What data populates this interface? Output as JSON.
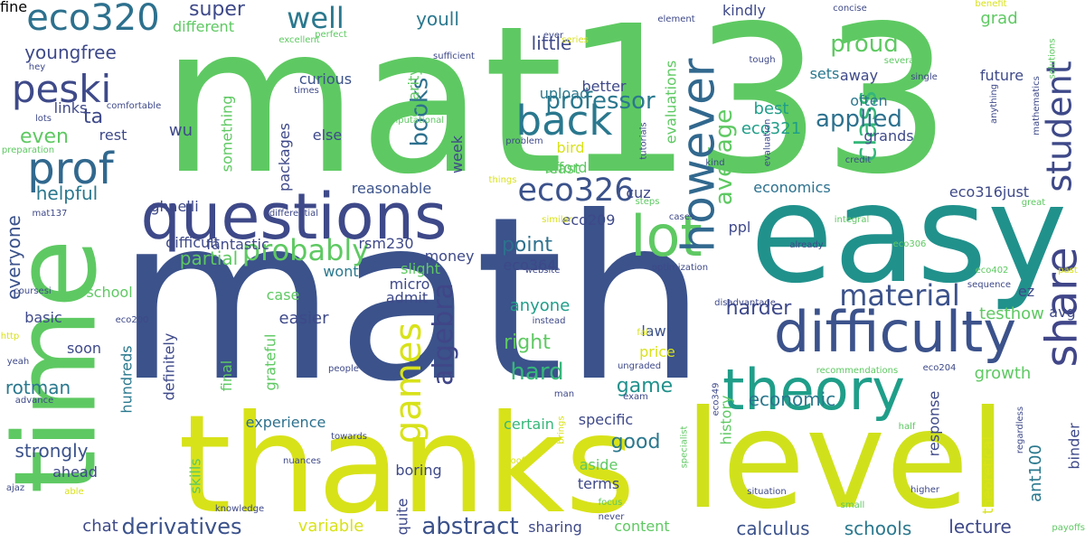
{
  "words": [
    {
      "text": "math",
      "color": "#3b528b",
      "rotate": false
    },
    {
      "text": "mat133",
      "color": "#5ec962",
      "rotate": false
    },
    {
      "text": "easy",
      "color": "#21918c",
      "rotate": false
    },
    {
      "text": "thanks",
      "color": "#d8e219",
      "rotate": false
    },
    {
      "text": "level",
      "color": "#d0e11c",
      "rotate": false
    },
    {
      "text": "time",
      "color": "#5ec962",
      "rotate": true
    },
    {
      "text": "questions",
      "color": "#3e4989",
      "rotate": false
    },
    {
      "text": "difficulty",
      "color": "#3b528b",
      "rotate": false
    },
    {
      "text": "theory",
      "color": "#1f9e89",
      "rotate": false
    },
    {
      "text": "lot",
      "color": "#5ec962",
      "rotate": false
    },
    {
      "text": "back",
      "color": "#2a788e",
      "rotate": false
    },
    {
      "text": "however",
      "color": "#31688e",
      "rotate": true
    },
    {
      "text": "share",
      "color": "#404688",
      "rotate": true
    },
    {
      "text": "prof",
      "color": "#31688e",
      "rotate": false
    },
    {
      "text": "peski",
      "color": "#3e4a89",
      "rotate": false
    },
    {
      "text": "eco320",
      "color": "#2d718e",
      "rotate": false
    },
    {
      "text": "eco326",
      "color": "#3b528b",
      "rotate": false
    },
    {
      "text": "class",
      "color": "#35b779",
      "rotate": true
    },
    {
      "text": "student",
      "color": "#3e4989",
      "rotate": true
    },
    {
      "text": "games",
      "color": "#d8e219",
      "rotate": true
    },
    {
      "text": "probably",
      "color": "#5ec962",
      "rotate": false
    },
    {
      "text": "material",
      "color": "#3b528b",
      "rotate": false
    },
    {
      "text": "well",
      "color": "#2a788e",
      "rotate": false
    },
    {
      "text": "professor",
      "color": "#2a788e",
      "rotate": false
    },
    {
      "text": "algebra",
      "color": "#404688",
      "rotate": true
    },
    {
      "text": "abstract",
      "color": "#3b528b",
      "rotate": false
    },
    {
      "text": "derivatives",
      "color": "#3b528b",
      "rotate": false
    },
    {
      "text": "books",
      "color": "#2d718e",
      "rotate": true
    },
    {
      "text": "proud",
      "color": "#5ec962",
      "rotate": false
    },
    {
      "text": "applied",
      "color": "#2d718e",
      "rotate": false
    },
    {
      "text": "average",
      "color": "#5ec962",
      "rotate": true
    },
    {
      "text": "point",
      "color": "#2d718e",
      "rotate": false
    },
    {
      "text": "right",
      "color": "#5ec962",
      "rotate": false
    },
    {
      "text": "hard",
      "color": "#35b779",
      "rotate": false
    },
    {
      "text": "super",
      "color": "#3e4989",
      "rotate": false
    },
    {
      "text": "youll",
      "color": "#2a788e",
      "rotate": false
    },
    {
      "text": "little",
      "color": "#3e4989",
      "rotate": false
    },
    {
      "text": "economic",
      "color": "#2a788e",
      "rotate": false
    },
    {
      "text": "good",
      "color": "#2a788e",
      "rotate": false
    },
    {
      "text": "rotman",
      "color": "#2a788e",
      "rotate": false
    },
    {
      "text": "strongly",
      "color": "#3b528b",
      "rotate": false
    },
    {
      "text": "everyone",
      "color": "#3b528b",
      "rotate": true
    },
    {
      "text": "youngfree",
      "color": "#3e4989",
      "rotate": false
    },
    {
      "text": "ta",
      "color": "#3e4989",
      "rotate": false
    },
    {
      "text": "even",
      "color": "#5ec962",
      "rotate": false
    },
    {
      "text": "helpful",
      "color": "#2a788e",
      "rotate": false
    },
    {
      "text": "harder",
      "color": "#3e4989",
      "rotate": false
    },
    {
      "text": "calculus",
      "color": "#3b528b",
      "rotate": false
    },
    {
      "text": "schools",
      "color": "#2a788e",
      "rotate": false
    },
    {
      "text": "lecture",
      "color": "#3e4989",
      "rotate": false
    },
    {
      "text": "chat",
      "color": "#3e4989",
      "rotate": false
    },
    {
      "text": "variable",
      "color": "#d8e219",
      "rotate": false
    },
    {
      "text": "content",
      "color": "#5ec962",
      "rotate": false
    },
    {
      "text": "certain",
      "color": "#35b779",
      "rotate": false
    },
    {
      "text": "experience",
      "color": "#2d718e",
      "rotate": false
    },
    {
      "text": "easier",
      "color": "#3e4989",
      "rotate": false
    },
    {
      "text": "partial",
      "color": "#5ec962",
      "rotate": false
    },
    {
      "text": "anyone",
      "color": "#1f9e89",
      "rotate": false
    },
    {
      "text": "game",
      "color": "#21918c",
      "rotate": false
    },
    {
      "text": "economics",
      "color": "#2d718e",
      "rotate": false
    },
    {
      "text": "history",
      "color": "#5ec962",
      "rotate": true
    },
    {
      "text": "testhow",
      "color": "#5ec962",
      "rotate": false
    },
    {
      "text": "growth",
      "color": "#5ec962",
      "rotate": false
    },
    {
      "text": "ant100",
      "color": "#2a788e",
      "rotate": true
    },
    {
      "text": "eco321",
      "color": "#1f9e89",
      "rotate": false
    },
    {
      "text": "best",
      "color": "#1f9e89",
      "rotate": false
    },
    {
      "text": "grands",
      "color": "#3e4989",
      "rotate": false
    },
    {
      "text": "grad",
      "color": "#5ec962",
      "rotate": false
    },
    {
      "text": "future",
      "color": "#3e4989",
      "rotate": false
    },
    {
      "text": "sets",
      "color": "#2a788e",
      "rotate": false
    },
    {
      "text": "away",
      "color": "#3e4989",
      "rotate": false
    },
    {
      "text": "often",
      "color": "#2a788e",
      "rotate": false
    },
    {
      "text": "wu",
      "color": "#3e4989",
      "rotate": false
    },
    {
      "text": "different",
      "color": "#5ec962",
      "rotate": false
    },
    {
      "text": "curious",
      "color": "#3b528b",
      "rotate": false
    },
    {
      "text": "something",
      "color": "#5ec962",
      "rotate": true
    },
    {
      "text": "upload",
      "color": "#2a788e",
      "rotate": false
    },
    {
      "text": "better",
      "color": "#3e4989",
      "rotate": false
    },
    {
      "text": "bird",
      "color": "#d8e219",
      "rotate": false
    },
    {
      "text": "afford",
      "color": "#5ec962",
      "rotate": false
    },
    {
      "text": "least",
      "color": "#5ec962",
      "rotate": false
    },
    {
      "text": "reasonable",
      "color": "#3b528b",
      "rotate": false
    },
    {
      "text": "eco209",
      "color": "#3e4989",
      "rotate": false
    },
    {
      "text": "eco364",
      "color": "#3e4989",
      "rotate": false
    },
    {
      "text": "money",
      "color": "#3e4989",
      "rotate": false
    },
    {
      "text": "law",
      "color": "#3b528b",
      "rotate": false
    },
    {
      "text": "price",
      "color": "#d8e219",
      "rotate": false
    },
    {
      "text": "terms",
      "color": "#3e4989",
      "rotate": false
    },
    {
      "text": "aside",
      "color": "#5ec962",
      "rotate": false
    },
    {
      "text": "sharing",
      "color": "#3e4989",
      "rotate": false
    },
    {
      "text": "boring",
      "color": "#3e4989",
      "rotate": false
    },
    {
      "text": "quite",
      "color": "#3e4989",
      "rotate": true
    },
    {
      "text": "final",
      "color": "#5ec962",
      "rotate": true
    },
    {
      "text": "definitely",
      "color": "#3e4989",
      "rotate": true
    },
    {
      "text": "skills",
      "color": "#5ec962",
      "rotate": true
    },
    {
      "text": "hundreds",
      "color": "#2a788e",
      "rotate": true
    },
    {
      "text": "grateful",
      "color": "#5ec962",
      "rotate": true
    },
    {
      "text": "ghaelli",
      "color": "#3e4989",
      "rotate": false
    },
    {
      "text": "rest",
      "color": "#3e4989",
      "rotate": false
    },
    {
      "text": "links",
      "color": "#3e4989",
      "rotate": false
    },
    {
      "text": "else",
      "color": "#3e4989",
      "rotate": false
    },
    {
      "text": "packages",
      "color": "#3e4989",
      "rotate": true
    },
    {
      "text": "charity",
      "color": "#5ec962",
      "rotate": true
    },
    {
      "text": "week",
      "color": "#3e4989",
      "rotate": true
    },
    {
      "text": "evaluations",
      "color": "#5ec962",
      "rotate": true
    },
    {
      "text": "cuz",
      "color": "#3e4989",
      "rotate": false
    },
    {
      "text": "ppl",
      "color": "#3e4989",
      "rotate": false
    },
    {
      "text": "kindly",
      "color": "#3e4989",
      "rotate": false
    },
    {
      "text": "eco316just",
      "color": "#3e4989",
      "rotate": false
    },
    {
      "text": "binder",
      "color": "#3e4989",
      "rotate": true
    },
    {
      "text": "theoretical",
      "color": "#d8e219",
      "rotate": true
    },
    {
      "text": "response",
      "color": "#3e4989",
      "rotate": true
    },
    {
      "text": "ez",
      "color": "#3e4989",
      "rotate": false
    },
    {
      "text": "avg",
      "color": "#3e4989",
      "rotate": false
    },
    {
      "text": "basic",
      "color": "#3e4989",
      "rotate": false
    },
    {
      "text": "specific",
      "color": "#3e4989",
      "rotate": false
    },
    {
      "text": "soon",
      "color": "#3e4989",
      "rotate": false
    },
    {
      "text": "ahead",
      "color": "#3e4989",
      "rotate": false
    },
    {
      "text": "case",
      "color": "#5ec962",
      "rotate": false
    },
    {
      "text": "wont",
      "color": "#2a788e",
      "rotate": false
    },
    {
      "text": "difficult",
      "color": "#3e4989",
      "rotate": false
    },
    {
      "text": "fantastic",
      "color": "#3e4989",
      "rotate": false
    },
    {
      "text": "rsm230",
      "color": "#3e4989",
      "rotate": false
    },
    {
      "text": "slight",
      "color": "#5ec962",
      "rotate": false
    },
    {
      "text": "micro",
      "color": "#3e4989",
      "rotate": false
    },
    {
      "text": "admit",
      "color": "#3e4989",
      "rotate": false
    },
    {
      "text": "school",
      "color": "#5ec962",
      "rotate": false
    },
    {
      "text": "http",
      "color": "#d8e219",
      "rotate": false
    },
    {
      "text": "yeah",
      "color": "#3e4989",
      "rotate": false
    },
    {
      "text": "advance",
      "color": "#3e4989",
      "rotate": false
    },
    {
      "text": "ajaz",
      "color": "#3e4989",
      "rotate": false
    },
    {
      "text": "able",
      "color": "#d8e219",
      "rotate": false
    },
    {
      "text": "nuances",
      "color": "#3e4989",
      "rotate": false
    },
    {
      "text": "towards",
      "color": "#3e4989",
      "rotate": false
    },
    {
      "text": "proofs",
      "color": "#d8e219",
      "rotate": false
    },
    {
      "text": "focus",
      "color": "#5ec962",
      "rotate": false
    },
    {
      "text": "never",
      "color": "#3e4989",
      "rotate": false
    },
    {
      "text": "people",
      "color": "#3e4989",
      "rotate": false
    },
    {
      "text": "man",
      "color": "#3e4989",
      "rotate": false
    },
    {
      "text": "exam",
      "color": "#3e4989",
      "rotate": false
    },
    {
      "text": "instead",
      "color": "#3e4989",
      "rotate": false
    },
    {
      "text": "ungraded",
      "color": "#3e4989",
      "rotate": false
    },
    {
      "text": "fall",
      "color": "#d8e219",
      "rotate": false
    },
    {
      "text": "optimization",
      "color": "#3e4989",
      "rotate": false
    },
    {
      "text": "disadvantage",
      "color": "#3e4989",
      "rotate": false
    },
    {
      "text": "recommendations",
      "color": "#5ec962",
      "rotate": false
    },
    {
      "text": "eco204",
      "color": "#3e4989",
      "rotate": false
    },
    {
      "text": "eco349",
      "color": "#3e4989",
      "rotate": true
    },
    {
      "text": "specialist",
      "color": "#5ec962",
      "rotate": true
    },
    {
      "text": "situation",
      "color": "#3e4989",
      "rotate": false
    },
    {
      "text": "half",
      "color": "#5ec962",
      "rotate": false
    },
    {
      "text": "small",
      "color": "#5ec962",
      "rotate": false
    },
    {
      "text": "higher",
      "color": "#3e4989",
      "rotate": false
    },
    {
      "text": "regardless",
      "color": "#3e4989",
      "rotate": true
    },
    {
      "text": "payoffs",
      "color": "#5ec962",
      "rotate": false
    },
    {
      "text": "past",
      "color": "#d8e219",
      "rotate": false
    },
    {
      "text": "sequence",
      "color": "#3e4989",
      "rotate": false
    },
    {
      "text": "eco402",
      "color": "#5ec962",
      "rotate": false
    },
    {
      "text": "eco306",
      "color": "#5ec962",
      "rotate": false
    },
    {
      "text": "already",
      "color": "#3e4989",
      "rotate": false
    },
    {
      "text": "integral",
      "color": "#5ec962",
      "rotate": false
    },
    {
      "text": "cases",
      "color": "#3e4989",
      "rotate": false
    },
    {
      "text": "website",
      "color": "#3e4989",
      "rotate": false
    },
    {
      "text": "similar",
      "color": "#d8e219",
      "rotate": false
    },
    {
      "text": "things",
      "color": "#d8e219",
      "rotate": false
    },
    {
      "text": "differential",
      "color": "#3e4989",
      "rotate": false
    },
    {
      "text": "steps",
      "color": "#5ec962",
      "rotate": false
    },
    {
      "text": "kind",
      "color": "#3e4989",
      "rotate": false
    },
    {
      "text": "tutorials",
      "color": "#3e4989",
      "rotate": true
    },
    {
      "text": "evaluation",
      "color": "#3e4989",
      "rotate": true
    },
    {
      "text": "problem",
      "color": "#3e4989",
      "rotate": false
    },
    {
      "text": "credit",
      "color": "#3e4989",
      "rotate": false
    },
    {
      "text": "great",
      "color": "#5ec962",
      "rotate": false
    },
    {
      "text": "anything",
      "color": "#3e4989",
      "rotate": true
    },
    {
      "text": "mathematics",
      "color": "#3e4989",
      "rotate": true
    },
    {
      "text": "solutions",
      "color": "#5ec962",
      "rotate": true
    },
    {
      "text": "benefit",
      "color": "#d8e219",
      "rotate": false
    },
    {
      "text": "concise",
      "color": "#3e4989",
      "rotate": false
    },
    {
      "text": "single",
      "color": "#3e4989",
      "rotate": false
    },
    {
      "text": "several",
      "color": "#5ec962",
      "rotate": false
    },
    {
      "text": "tough",
      "color": "#3e4989",
      "rotate": false
    },
    {
      "text": "element",
      "color": "#3e4989",
      "rotate": false
    },
    {
      "text": "series",
      "color": "#d8e219",
      "rotate": false
    },
    {
      "text": "ever",
      "color": "#3e4989",
      "rotate": false
    },
    {
      "text": "sufficient",
      "color": "#3e4989",
      "rotate": false
    },
    {
      "text": "perfect",
      "color": "#5ec962",
      "rotate": false
    },
    {
      "text": "excellent",
      "color": "#5ec962",
      "rotate": false
    },
    {
      "text": "times",
      "color": "#3e4989",
      "rotate": false
    },
    {
      "text": "comfortable",
      "color": "#3e4989",
      "rotate": false
    },
    {
      "text": "hey",
      "color": "#3e4989",
      "rotate": false
    },
    {
      "text": "lots",
      "color": "#3e4989",
      "rotate": false
    },
    {
      "text": "preparation",
      "color": "#5ec962",
      "rotate": false
    },
    {
      "text": "mat137",
      "color": "#3e4989",
      "rotate": false
    },
    {
      "text": "coursesi",
      "color": "#3e4989",
      "rotate": false
    },
    {
      "text": "eco200",
      "color": "#3e4989",
      "rotate": false
    },
    {
      "text": "computational",
      "color": "#5ec962",
      "rotate": false
    },
    {
      "text": "brings",
      "color": "#d8e219",
      "rotate": true
    },
    {
      "text": "knowledge",
      "color": "#3e4989",
      "rotate": false
    },
    {
      "text": "fine",
      "color": "#d8e219",
      "rotate": false
    }
  ]
}
